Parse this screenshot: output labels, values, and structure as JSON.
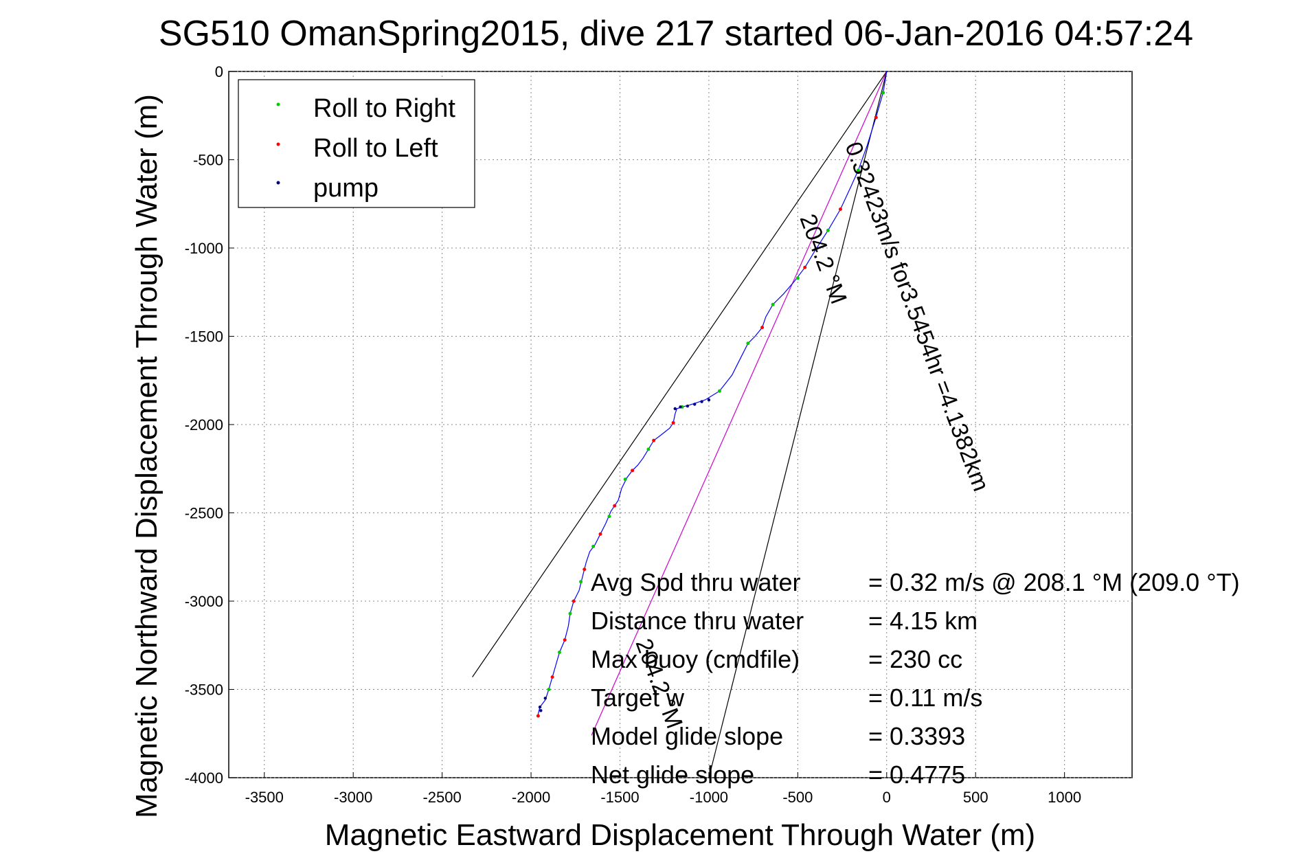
{
  "chart_data": {
    "type": "scatter",
    "title": "SG510 OmanSpring2015, dive 217 started 06-Jan-2016 04:57:24",
    "xlabel": "Magnetic Eastward Displacement Through Water (m)",
    "ylabel": "Magnetic Northward Displacement Through Water (m)",
    "xlim": [
      -3700,
      1380
    ],
    "ylim": [
      -4000,
      0
    ],
    "xticks": [
      -3500,
      -3000,
      -2500,
      -2000,
      -1500,
      -1000,
      -500,
      0,
      500,
      1000
    ],
    "xtick_labels": [
      "-3500",
      "-3000",
      "-2500",
      "-2000",
      "-1500",
      "-1000",
      "-500",
      "0",
      "500",
      "1000"
    ],
    "yticks": [
      0,
      -500,
      -1000,
      -1500,
      -2000,
      -2500,
      -3000,
      -3500,
      -4000
    ],
    "ytick_labels": [
      "0",
      "-500",
      "-1000",
      "-1500",
      "-2000",
      "-2500",
      "-3000",
      "-3500",
      "-4000"
    ],
    "grid": true,
    "legend_position": "top-left",
    "legend": [
      {
        "label": "Roll to Right",
        "color": "#00cc00"
      },
      {
        "label": "Roll to Left",
        "color": "#ff0000"
      },
      {
        "label": "pump",
        "color": "#000080"
      }
    ],
    "track_color": "#0000ff",
    "heading_line_color": "#cc00cc",
    "track": [
      [
        0,
        0
      ],
      [
        -20,
        -120
      ],
      [
        -60,
        -260
      ],
      [
        -110,
        -420
      ],
      [
        -160,
        -560
      ],
      [
        -200,
        -650
      ],
      [
        -260,
        -780
      ],
      [
        -330,
        -900
      ],
      [
        -400,
        -1010
      ],
      [
        -460,
        -1110
      ],
      [
        -520,
        -1190
      ],
      [
        -580,
        -1260
      ],
      [
        -640,
        -1320
      ],
      [
        -680,
        -1390
      ],
      [
        -700,
        -1450
      ],
      [
        -740,
        -1500
      ],
      [
        -780,
        -1540
      ],
      [
        -820,
        -1620
      ],
      [
        -870,
        -1720
      ],
      [
        -940,
        -1810
      ],
      [
        -1020,
        -1860
      ],
      [
        -1110,
        -1890
      ],
      [
        -1150,
        -1900
      ],
      [
        -1180,
        -1910
      ],
      [
        -1190,
        -1940
      ],
      [
        -1200,
        -1990
      ],
      [
        -1220,
        -2020
      ],
      [
        -1270,
        -2060
      ],
      [
        -1310,
        -2090
      ],
      [
        -1340,
        -2140
      ],
      [
        -1370,
        -2190
      ],
      [
        -1400,
        -2230
      ],
      [
        -1430,
        -2260
      ],
      [
        -1460,
        -2300
      ],
      [
        -1490,
        -2360
      ],
      [
        -1510,
        -2430
      ],
      [
        -1550,
        -2490
      ],
      [
        -1580,
        -2560
      ],
      [
        -1610,
        -2620
      ],
      [
        -1640,
        -2680
      ],
      [
        -1670,
        -2720
      ],
      [
        -1690,
        -2780
      ],
      [
        -1710,
        -2860
      ],
      [
        -1730,
        -2940
      ],
      [
        -1760,
        -3000
      ],
      [
        -1780,
        -3070
      ],
      [
        -1790,
        -3140
      ],
      [
        -1810,
        -3220
      ],
      [
        -1840,
        -3290
      ],
      [
        -1860,
        -3360
      ],
      [
        -1880,
        -3430
      ],
      [
        -1900,
        -3500
      ],
      [
        -1920,
        -3560
      ],
      [
        -1950,
        -3600
      ],
      [
        -1960,
        -3640
      ]
    ],
    "roll_right_points": [
      [
        -20,
        -120
      ],
      [
        -160,
        -560
      ],
      [
        -330,
        -900
      ],
      [
        -500,
        -1170
      ],
      [
        -640,
        -1320
      ],
      [
        -780,
        -1540
      ],
      [
        -940,
        -1810
      ],
      [
        -1150,
        -1900
      ],
      [
        -1340,
        -2140
      ],
      [
        -1470,
        -2310
      ],
      [
        -1560,
        -2520
      ],
      [
        -1650,
        -2690
      ],
      [
        -1720,
        -2890
      ],
      [
        -1780,
        -3070
      ],
      [
        -1840,
        -3290
      ],
      [
        -1900,
        -3500
      ]
    ],
    "roll_left_points": [
      [
        -60,
        -260
      ],
      [
        -260,
        -780
      ],
      [
        -460,
        -1110
      ],
      [
        -700,
        -1450
      ],
      [
        -1200,
        -1990
      ],
      [
        -1310,
        -2090
      ],
      [
        -1430,
        -2260
      ],
      [
        -1530,
        -2460
      ],
      [
        -1610,
        -2620
      ],
      [
        -1700,
        -2820
      ],
      [
        -1760,
        -3000
      ],
      [
        -1810,
        -3220
      ],
      [
        -1880,
        -3430
      ],
      [
        -1960,
        -3650
      ]
    ],
    "pump_points": [
      [
        -1000,
        -1860
      ],
      [
        -1040,
        -1870
      ],
      [
        -1080,
        -1885
      ],
      [
        -1120,
        -1895
      ],
      [
        -1160,
        -1900
      ],
      [
        -1190,
        -1910
      ],
      [
        -1950,
        -3600
      ],
      [
        -1945,
        -3620
      ],
      [
        -1920,
        -3550
      ]
    ],
    "heading_lines": [
      {
        "from": [
          0,
          0
        ],
        "to": [
          -2330,
          -3430
        ],
        "label": "204.2 °M",
        "color": "#000000"
      },
      {
        "from": [
          0,
          0
        ],
        "to": [
          -1660,
          -3760
        ],
        "label": "0.32423m/s for3.5454hr =4.1382km",
        "color": "#cc00cc"
      },
      {
        "from": [
          0,
          0
        ],
        "to": [
          -1000,
          -4000
        ],
        "label": "204.2 °M",
        "color": "#000000"
      }
    ],
    "stats": [
      {
        "label": "Avg Spd thru water",
        "value": "=  0.32 m/s @ 208.1 °M (209.0 °T)"
      },
      {
        "label": "Distance thru water",
        "value": "=  4.15 km"
      },
      {
        "label": "Max buoy (cmdfile)",
        "value": "= 230 cc"
      },
      {
        "label": "Target w",
        "value": "= 0.11 m/s"
      },
      {
        "label": "Model glide slope",
        "value": "= 0.3393"
      },
      {
        "label": "Net glide slope",
        "value": "= 0.4775"
      }
    ]
  }
}
